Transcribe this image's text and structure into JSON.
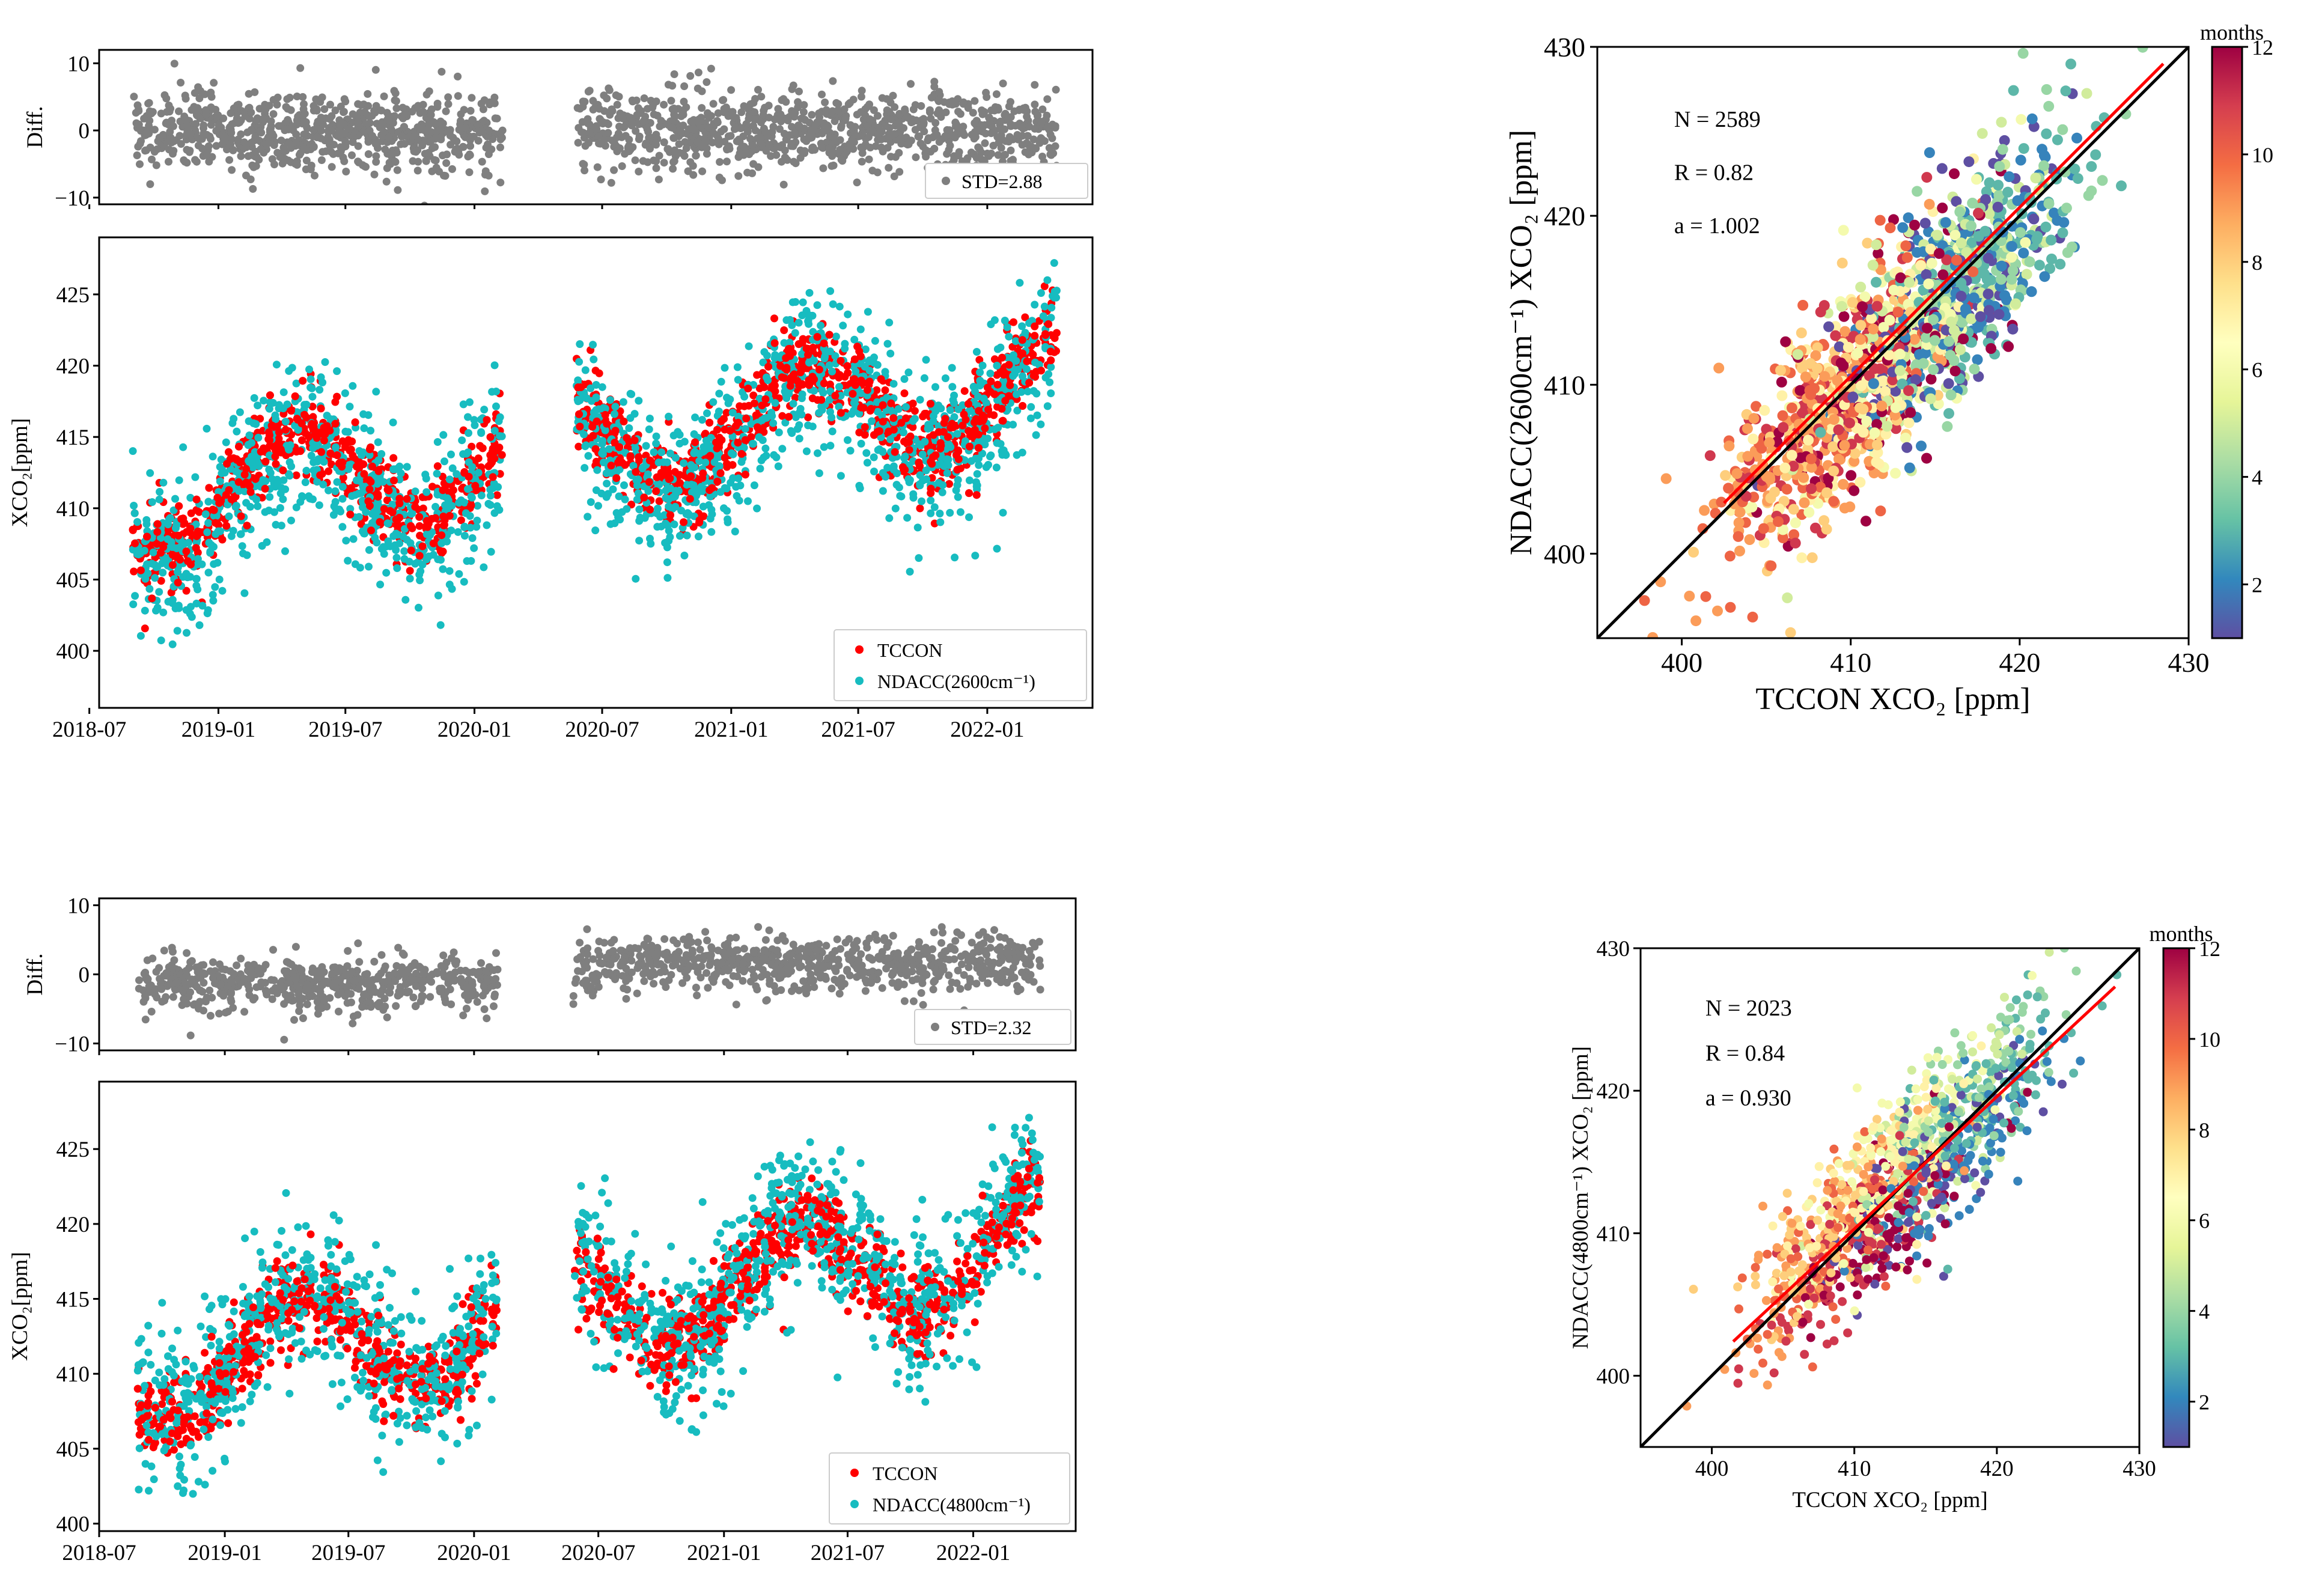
{
  "figure": {
    "layout": "2x2 panel figure: time series (left) and scatter (right)"
  },
  "chart_data": [
    {
      "type": "scatter",
      "id": "ts1",
      "subplots": [
        {
          "name": "difference",
          "ylabel": "Diff.",
          "ylim": [
            -11,
            12
          ],
          "yticks": [
            10,
            0,
            -10
          ],
          "series": [
            {
              "name": "STD=2.88",
              "color": "#7f7f7f"
            }
          ]
        },
        {
          "name": "xco2",
          "ylabel": "XCO₂[ppm]",
          "ylim": [
            396,
            429
          ],
          "yticks": [
            400,
            405,
            410,
            415,
            420,
            425
          ],
          "series": [
            {
              "name": "TCCON",
              "color": "#ff0000"
            },
            {
              "name": "NDACC(2600cm⁻¹)",
              "color": "#17bcc0"
            }
          ]
        }
      ],
      "xlim": [
        "2018-07-15",
        "2022-05-31"
      ],
      "xticks": [
        "2018-07",
        "2019-01",
        "2019-07",
        "2020-01",
        "2020-07",
        "2021-01",
        "2021-07",
        "2022-01"
      ],
      "data_segments": [
        [
          "2018-09-01",
          "2020-02-10"
        ],
        [
          "2020-05-25",
          "2022-04-10"
        ]
      ],
      "legend": {
        "position": "lower right",
        "std_label": "STD=2.88",
        "tccon": "TCCON",
        "ndacc": "NDACC(2600cm⁻¹)"
      }
    },
    {
      "type": "scatter",
      "id": "sc1",
      "xlabel": "TCCON XCO₂ [ppm]",
      "ylabel": "NDACC(2600cm⁻¹) XCO₂ [ppm]",
      "xlim": [
        395,
        430
      ],
      "ylim": [
        395,
        430
      ],
      "xticks": [
        400,
        410,
        420,
        430
      ],
      "yticks": [
        400,
        410,
        420,
        430
      ],
      "stats": {
        "N": "N = 2589",
        "R": "R = 0.82",
        "a": "a = 1.002"
      },
      "fit_line": {
        "x": [
          402.5,
          428.5
        ],
        "y": [
          403.0,
          429.0
        ],
        "color": "#ff0000"
      },
      "one_to_one": {
        "color": "#000000"
      },
      "colorbar": {
        "title": "months",
        "range": [
          1,
          12
        ],
        "ticks": [
          2,
          4,
          6,
          8,
          10,
          12
        ],
        "cmap": "Spectral"
      },
      "n_points": 2589
    },
    {
      "type": "scatter",
      "id": "ts2",
      "subplots": [
        {
          "name": "difference",
          "ylabel": "Diff.",
          "ylim": [
            -11,
            11
          ],
          "yticks": [
            10,
            0,
            -10
          ],
          "series": [
            {
              "name": "STD=2.32",
              "color": "#7f7f7f"
            }
          ]
        },
        {
          "name": "xco2",
          "ylabel": "XCO₂[ppm]",
          "ylim": [
            399.5,
            429.5
          ],
          "yticks": [
            400,
            405,
            410,
            415,
            420,
            425
          ],
          "series": [
            {
              "name": "TCCON",
              "color": "#ff0000"
            },
            {
              "name": "NDACC(4800cm⁻¹)",
              "color": "#17bcc0"
            }
          ]
        }
      ],
      "xlim": [
        "2018-07-01",
        "2022-05-31"
      ],
      "xticks": [
        "2018-07",
        "2019-01",
        "2019-07",
        "2020-01",
        "2020-07",
        "2021-01",
        "2021-07",
        "2022-01"
      ],
      "data_segments": [
        [
          "2018-08-25",
          "2020-02-05"
        ],
        [
          "2020-05-25",
          "2022-04-10"
        ]
      ],
      "legend": {
        "position": "lower right",
        "std_label": "STD=2.32",
        "tccon": "TCCON",
        "ndacc": "NDACC(4800cm⁻¹)"
      }
    },
    {
      "type": "scatter",
      "id": "sc2",
      "xlabel": "TCCON XCO₂ [ppm]",
      "ylabel": "NDACC(4800cm⁻¹) XCO₂ [ppm]",
      "xlim": [
        395,
        430
      ],
      "ylim": [
        395,
        430
      ],
      "xticks": [
        400,
        410,
        420,
        430
      ],
      "yticks": [
        400,
        410,
        420,
        430
      ],
      "stats": {
        "N": "N = 2023",
        "R": "R = 0.84",
        "a": "a = 0.930"
      },
      "fit_line": {
        "x": [
          401.5,
          428.3
        ],
        "y": [
          402.4,
          427.3
        ],
        "color": "#ff0000"
      },
      "one_to_one": {
        "color": "#000000"
      },
      "colorbar": {
        "title": "months",
        "range": [
          1,
          12
        ],
        "ticks": [
          2,
          4,
          6,
          8,
          10,
          12
        ],
        "cmap": "Spectral"
      },
      "n_points": 2023
    }
  ]
}
